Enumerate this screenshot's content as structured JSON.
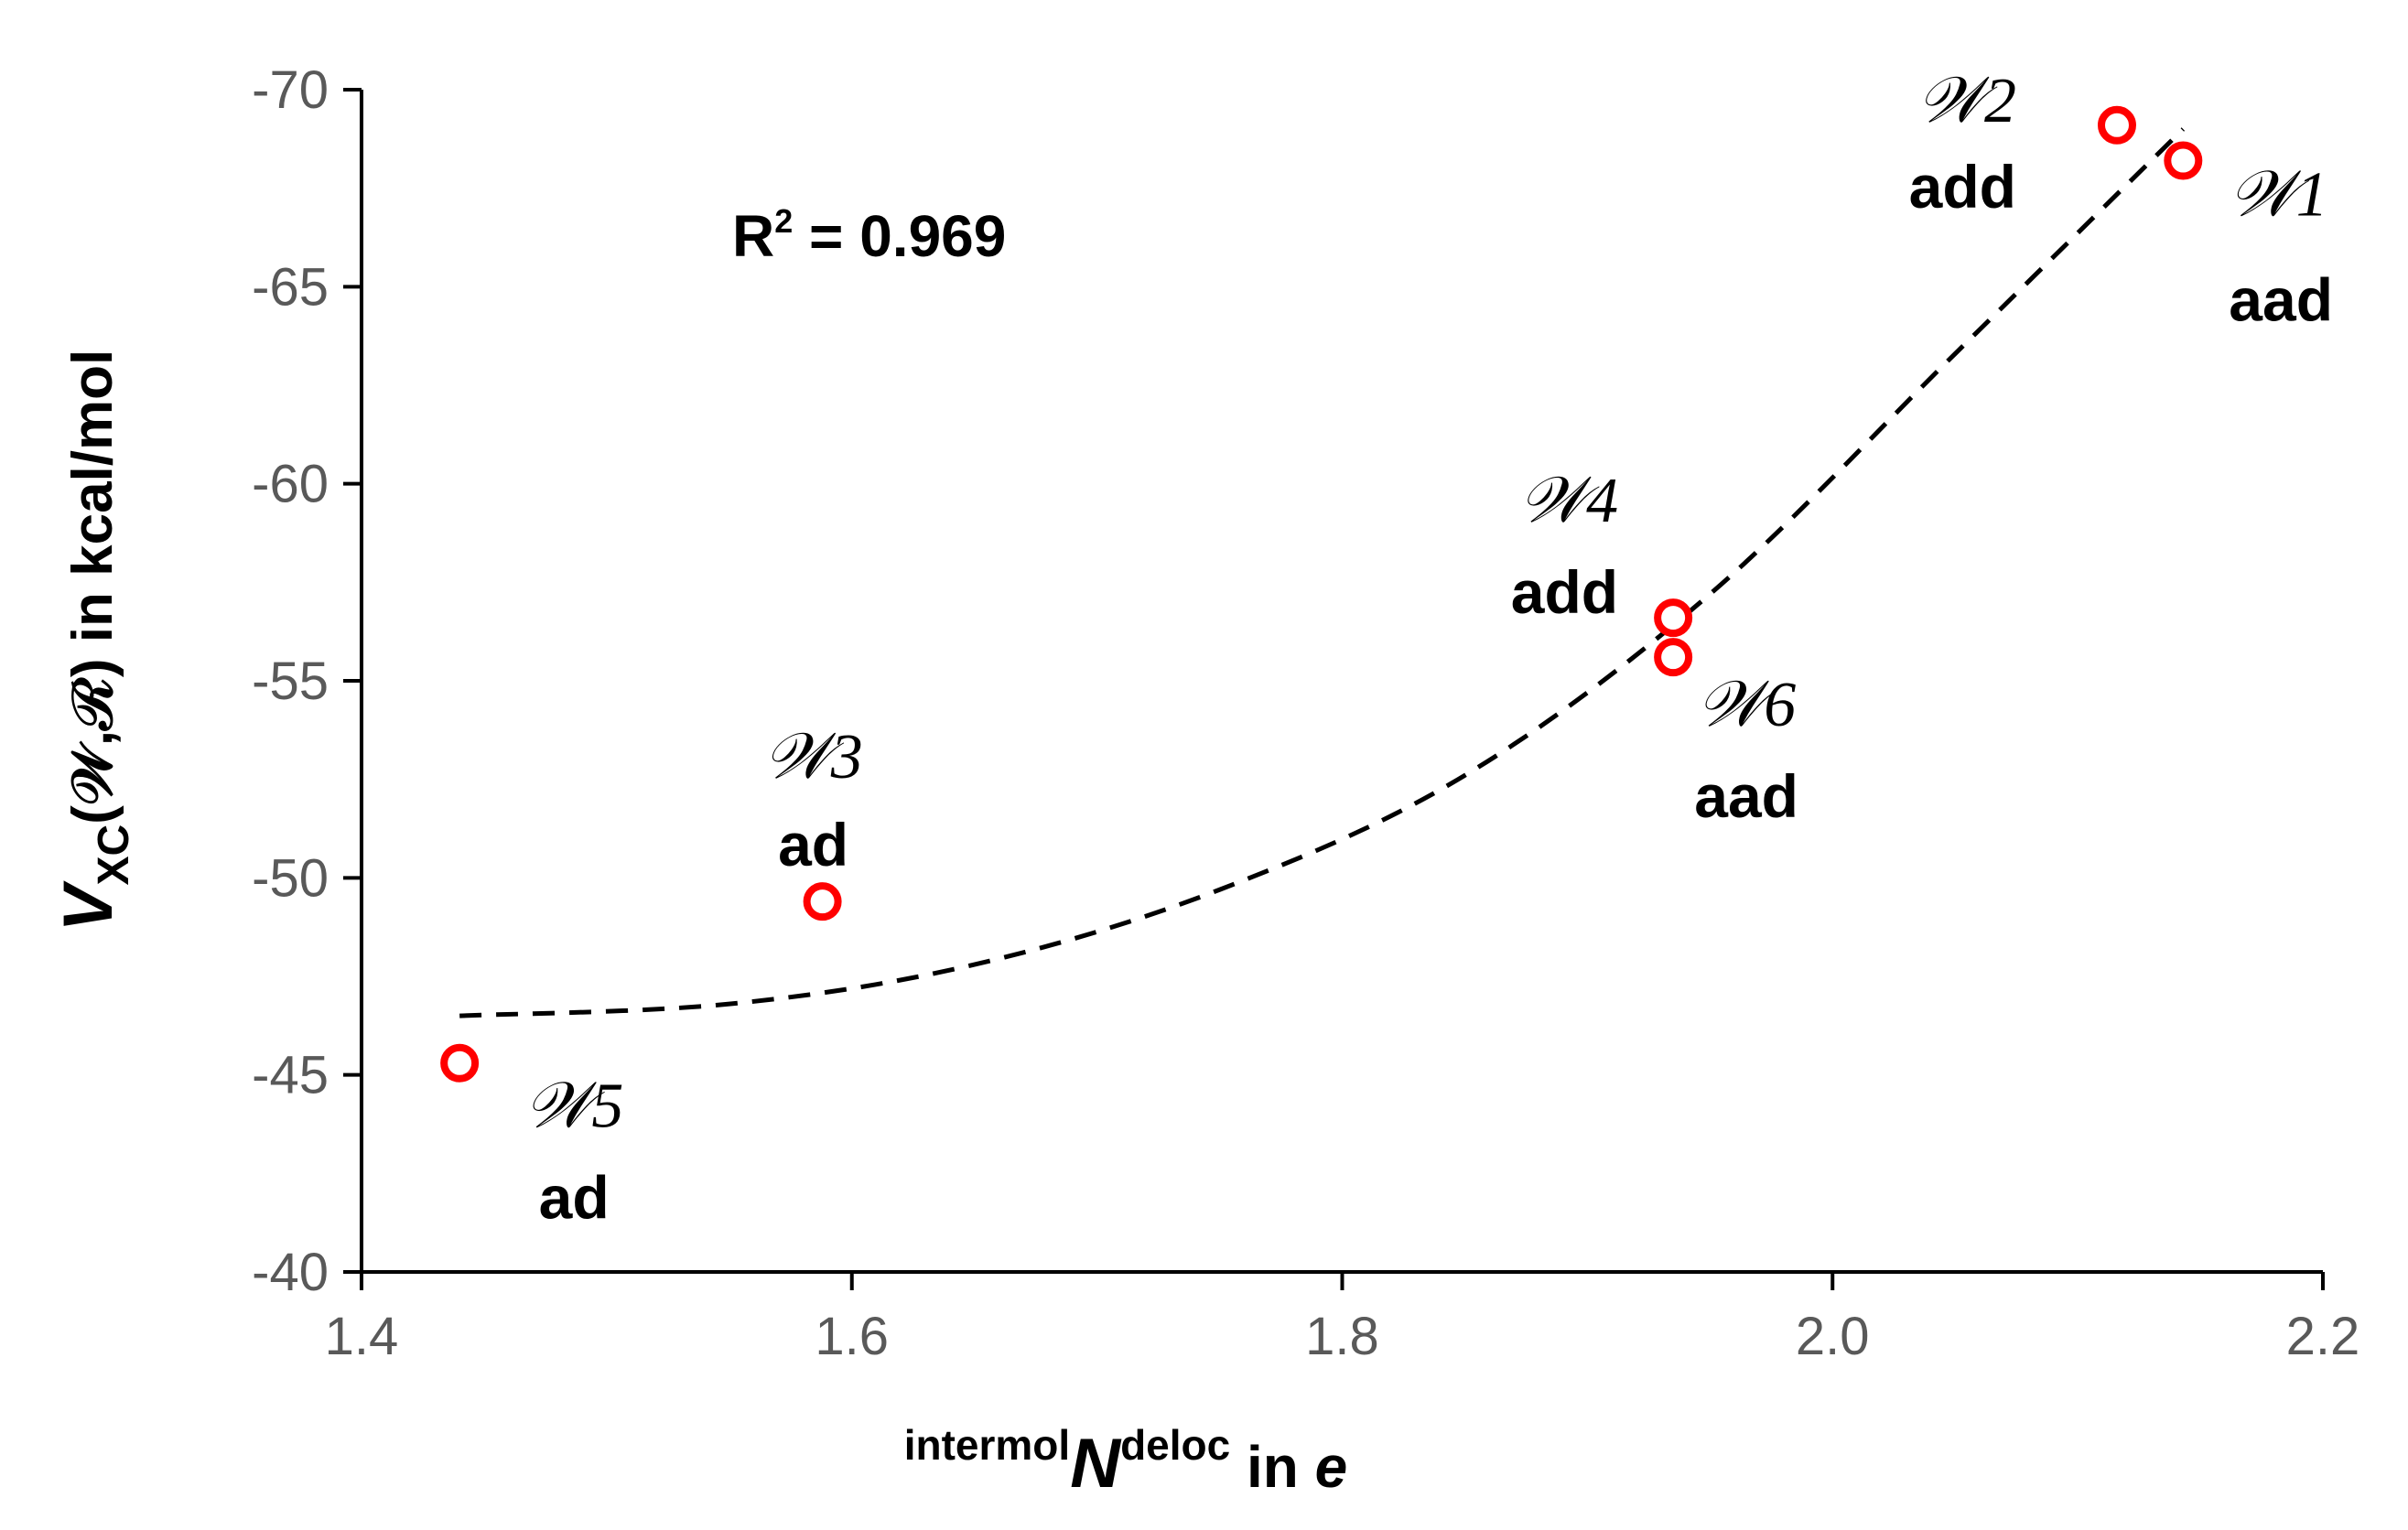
{
  "chart_data": {
    "type": "scatter",
    "xlim": [
      1.4,
      2.2
    ],
    "ylim": [
      -40,
      -70
    ],
    "y_axis_inverted": true,
    "x_ticks": [
      "1.4",
      "1.6",
      "1.8",
      "2.0",
      "2.2"
    ],
    "x_tick_values": [
      1.4,
      1.6,
      1.8,
      2.0,
      2.2
    ],
    "y_ticks": [
      "-70",
      "-65",
      "-60",
      "-55",
      "-50",
      "-45",
      "-40"
    ],
    "y_tick_values": [
      -70,
      -65,
      -60,
      -55,
      -50,
      -45,
      -40
    ],
    "xlabel": {
      "pre": "intermol",
      "main": "N",
      "sup": "deloc",
      "post": " in ",
      "unit": "e"
    },
    "ylabel": {
      "main": "V",
      "sub": "XC",
      "rest": "(𝒲,ℛ) in kcal/mol"
    },
    "annotation": {
      "r2_prefix": "R",
      "r2_sup": "2",
      "r2_text": " = 0.969"
    },
    "points": [
      {
        "x": 2.143,
        "y": -68.2,
        "name": "𝒲1",
        "type": "aad"
      },
      {
        "x": 2.116,
        "y": -69.1,
        "name": "𝒲2",
        "type": "add"
      },
      {
        "x": 1.588,
        "y": -49.4,
        "name": "𝒲3",
        "type": "ad"
      },
      {
        "x": 1.935,
        "y": -56.6,
        "name": "𝒲4",
        "type": "add"
      },
      {
        "x": 1.44,
        "y": -45.3,
        "name": "𝒲5",
        "type": "ad"
      },
      {
        "x": 1.935,
        "y": -55.6,
        "name": "𝒲6",
        "type": "aad"
      }
    ],
    "trendline": {
      "kind": "polynomial",
      "style": "dashed",
      "x_range": [
        1.44,
        2.143
      ],
      "samples": [
        {
          "x": 1.44,
          "y": -46.5
        },
        {
          "x": 1.55,
          "y": -46.8
        },
        {
          "x": 1.65,
          "y": -47.8
        },
        {
          "x": 1.75,
          "y": -49.7
        },
        {
          "x": 1.85,
          "y": -52.6
        },
        {
          "x": 1.95,
          "y": -57.2
        },
        {
          "x": 2.05,
          "y": -63.3
        },
        {
          "x": 2.143,
          "y": -69.0
        }
      ]
    },
    "marker_color": "#ff0000",
    "line_color": "#000000",
    "grid": false,
    "legend": "none"
  }
}
